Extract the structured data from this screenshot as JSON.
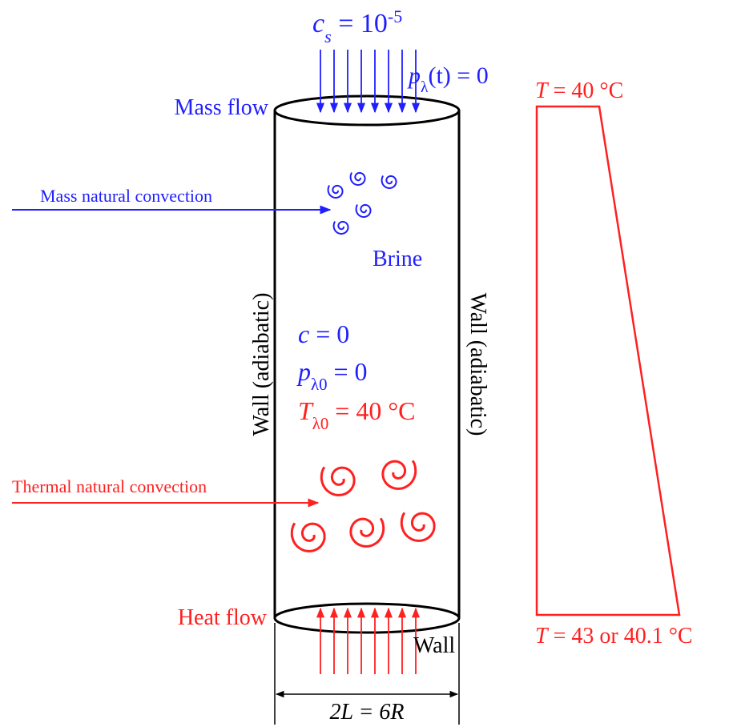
{
  "top_condition": {
    "symbol": "c",
    "subscript": "s",
    "rest": " = 10",
    "exponent": "-5"
  },
  "pressure_condition": {
    "symbol": "p",
    "subscript": "λ",
    "rest": "(t) = 0"
  },
  "mass_flow": "Mass flow",
  "top_temperature": {
    "symbol": "T",
    "rest": " = 40 °C"
  },
  "mass_convection": "Mass natural convection",
  "brine": "Brine",
  "left_wall": "Wall (adiabatic)",
  "right_wall": "Wall (adiabatic)",
  "initial_conditions": [
    {
      "symbol": "c",
      "rest": " = 0"
    },
    {
      "symbol": "p",
      "subscript": "λ0",
      "rest": " = 0"
    },
    {
      "symbol": "T",
      "subscript": "λ0",
      "rest": " = 40 °C"
    }
  ],
  "thermal_convection": "Thermal natural convection",
  "heat_flow": "Heat flow",
  "bottom_wall": "Wall",
  "bottom_temperature": {
    "symbol": "T",
    "rest": " = 43 or 40.1 °C"
  },
  "dimension": "2L = 6R"
}
